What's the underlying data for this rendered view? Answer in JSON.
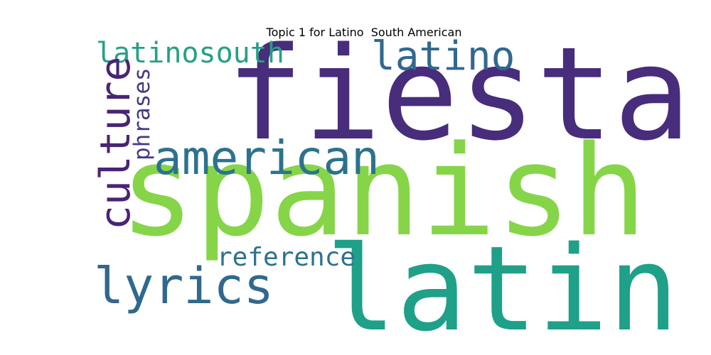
{
  "title": "Topic 1 for Latino  South American",
  "words": [
    {
      "text": "fiesta",
      "color": "#472d7b"
    },
    {
      "text": "spanish",
      "color": "#86d549"
    },
    {
      "text": "latin",
      "color": "#1fa088"
    },
    {
      "text": "american",
      "color": "#2c728e"
    },
    {
      "text": "latino",
      "color": "#31688e"
    },
    {
      "text": "culture",
      "color": "#482475"
    },
    {
      "text": "lyrics",
      "color": "#31688e"
    },
    {
      "text": "latinosouth",
      "color": "#26a085"
    },
    {
      "text": "reference",
      "color": "#2d718e"
    },
    {
      "text": "phrases",
      "color": "#443a83"
    }
  ]
}
